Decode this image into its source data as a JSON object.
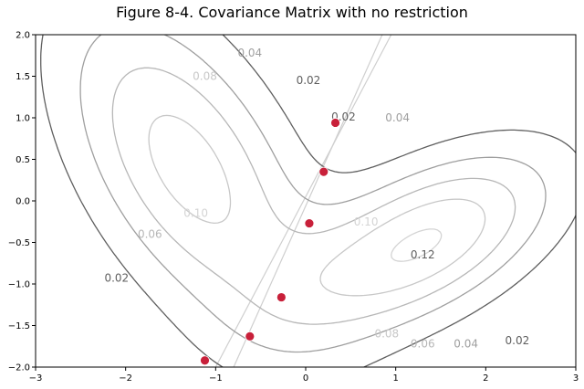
{
  "chart_data": {
    "type": "contour",
    "title": "Figure 8-4. Covariance Matrix with no restriction",
    "xlim": [
      -3,
      3
    ],
    "ylim": [
      -2,
      2
    ],
    "x_ticks": [
      "−3",
      "−2",
      "−1",
      "0",
      "1",
      "2",
      "3"
    ],
    "y_ticks": [
      "−2.0",
      "−1.5",
      "−1.0",
      "−0.5",
      "0.0",
      "0.5",
      "1.0",
      "1.5",
      "2.0"
    ],
    "grid": false,
    "components": [
      {
        "mean": [
          -1.3,
          0.4
        ],
        "sx": 0.95,
        "sy": 1.35,
        "rho": -0.55
      },
      {
        "mean": [
          1.3,
          -0.5
        ],
        "sx": 1.0,
        "sy": 0.75,
        "rho": 0.55
      }
    ],
    "weights": [
      0.6,
      0.4
    ],
    "levels": [
      0.02,
      0.04,
      0.06,
      0.08,
      0.1,
      0.12
    ],
    "level_colors": {
      "0.02": "#5f5f5f",
      "0.04": "#9f9f9f",
      "0.06": "#b7b7b7",
      "0.08": "#c8c8c8",
      "0.10": "#d4d4d4",
      "0.12": "#5f5f5f"
    },
    "contour_labels": [
      {
        "text": "0.02",
        "x": -2.1,
        "y": -0.93
      },
      {
        "text": "0.06",
        "x": -1.73,
        "y": -0.4
      },
      {
        "text": "0.10",
        "x": -1.22,
        "y": -0.15
      },
      {
        "text": "0.08",
        "x": -1.12,
        "y": 1.5
      },
      {
        "text": "0.04",
        "x": -0.62,
        "y": 1.78
      },
      {
        "text": "0.02",
        "x": 0.03,
        "y": 1.45
      },
      {
        "text": "0.02",
        "x": 0.42,
        "y": 1.01
      },
      {
        "text": "0.04",
        "x": 1.02,
        "y": 1.0
      },
      {
        "text": "0.10",
        "x": 0.67,
        "y": -0.25
      },
      {
        "text": "0.12",
        "x": 1.3,
        "y": -0.65
      },
      {
        "text": "0.08",
        "x": 0.9,
        "y": -1.6
      },
      {
        "text": "0.06",
        "x": 1.3,
        "y": -1.72
      },
      {
        "text": "0.04",
        "x": 1.78,
        "y": -1.72
      },
      {
        "text": "0.02",
        "x": 2.35,
        "y": -1.68
      }
    ],
    "point_color": "#c8203a",
    "points": [
      {
        "x": -1.12,
        "y": -1.92
      },
      {
        "x": -0.62,
        "y": -1.63
      },
      {
        "x": -0.27,
        "y": -1.16
      },
      {
        "x": 0.04,
        "y": -0.27
      },
      {
        "x": 0.2,
        "y": 0.35
      },
      {
        "x": 0.33,
        "y": 0.94
      }
    ],
    "trajectory_lines": [
      {
        "from": [
          -0.8,
          -2.0
        ],
        "to": [
          0.85,
          2.0
        ]
      },
      {
        "from": [
          -1.0,
          -2.0
        ],
        "to": [
          0.95,
          2.0
        ]
      }
    ]
  }
}
